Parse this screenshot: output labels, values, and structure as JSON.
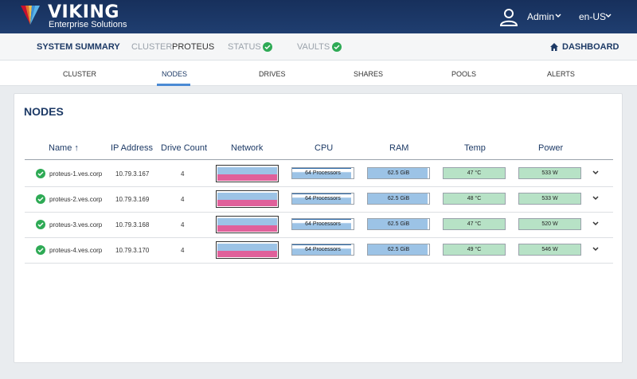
{
  "header": {
    "brand_name": "VIKING",
    "brand_sub": "Enterprise Solutions",
    "user": "Admin",
    "language": "en-US"
  },
  "summary": {
    "title": "SYSTEM SUMMARY",
    "cluster_label": "CLUSTER",
    "cluster_value": "PROTEUS",
    "status_label": "STATUS",
    "vaults_label": "VAULTS",
    "dashboard_label": "DASHBOARD"
  },
  "tabs": [
    {
      "label": "CLUSTER"
    },
    {
      "label": "NODES",
      "active": true
    },
    {
      "label": "DRIVES"
    },
    {
      "label": "SHARES"
    },
    {
      "label": "POOLS"
    },
    {
      "label": "ALERTS"
    }
  ],
  "nodes": {
    "title": "NODES",
    "columns": [
      "Name ↑",
      "IP Address",
      "Drive Count",
      "Network",
      "CPU",
      "RAM",
      "Temp",
      "Power"
    ],
    "rows": [
      {
        "name": "proteus-1.ves.corp",
        "ip": "10.79.3.167",
        "drives": "4",
        "cpu": "64 Processors",
        "ram": "62.5 GiB",
        "temp": "47 °C",
        "power": "533 W"
      },
      {
        "name": "proteus-2.ves.corp",
        "ip": "10.79.3.169",
        "drives": "4",
        "cpu": "64 Processors",
        "ram": "62.5 GiB",
        "temp": "48 °C",
        "power": "533 W"
      },
      {
        "name": "proteus-3.ves.corp",
        "ip": "10.79.3.168",
        "drives": "4",
        "cpu": "64 Processors",
        "ram": "62.5 GiB",
        "temp": "47 °C",
        "power": "520 W"
      },
      {
        "name": "proteus-4.ves.corp",
        "ip": "10.79.3.170",
        "drives": "4",
        "cpu": "64 Processors",
        "ram": "62.5 GiB",
        "temp": "49 °C",
        "power": "546 W"
      }
    ]
  },
  "colors": {
    "header_bg": "#1f3e70",
    "accent": "#1d3a66",
    "ok_green": "#2eaa55",
    "tab_underline": "#4a8ad4",
    "net_blue": "#9cc3e6",
    "net_pink": "#e0609a",
    "temp_green": "#b7e2c6"
  },
  "icons": {
    "user": "user-icon",
    "ok": "check-circle-icon",
    "home": "home-icon",
    "chevron": "chevron-down-icon"
  }
}
